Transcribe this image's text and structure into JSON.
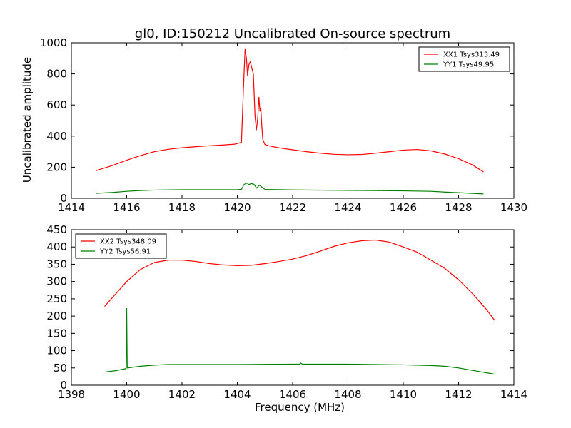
{
  "title": "gl0, ID:150212 Uncalibrated On-source spectrum",
  "chart_data": [
    {
      "type": "line",
      "ylabel": "Uncalibrated amplitude",
      "xlabel": "",
      "xlim": [
        1414,
        1430
      ],
      "ylim": [
        0,
        1000
      ],
      "xticks": [
        "1414",
        "1416",
        "1418",
        "1420",
        "1422",
        "1424",
        "1426",
        "1428",
        "1430"
      ],
      "yticks": [
        "0",
        "200",
        "400",
        "600",
        "800",
        "1000"
      ],
      "legend_position": "top-right",
      "series": [
        {
          "name": "XX1 Tsys313.49",
          "color": "#ff0000",
          "points": [
            [
              1414.9,
              178
            ],
            [
              1415.2,
              195
            ],
            [
              1415.5,
              212
            ],
            [
              1416.0,
              245
            ],
            [
              1416.5,
              275
            ],
            [
              1417.0,
              300
            ],
            [
              1417.5,
              315
            ],
            [
              1418.0,
              325
            ],
            [
              1418.5,
              332
            ],
            [
              1419.0,
              338
            ],
            [
              1419.5,
              343
            ],
            [
              1419.9,
              348
            ],
            [
              1420.15,
              360
            ],
            [
              1420.22,
              700
            ],
            [
              1420.28,
              960
            ],
            [
              1420.33,
              900
            ],
            [
              1420.37,
              790
            ],
            [
              1420.42,
              860
            ],
            [
              1420.47,
              880
            ],
            [
              1420.52,
              840
            ],
            [
              1420.58,
              800
            ],
            [
              1420.64,
              530
            ],
            [
              1420.69,
              440
            ],
            [
              1420.74,
              520
            ],
            [
              1420.78,
              650
            ],
            [
              1420.82,
              560
            ],
            [
              1420.85,
              580
            ],
            [
              1420.88,
              480
            ],
            [
              1420.92,
              380
            ],
            [
              1421.0,
              345
            ],
            [
              1421.2,
              335
            ],
            [
              1421.6,
              322
            ],
            [
              1422.0,
              312
            ],
            [
              1422.5,
              300
            ],
            [
              1423.0,
              290
            ],
            [
              1423.5,
              283
            ],
            [
              1424.0,
              280
            ],
            [
              1424.5,
              282
            ],
            [
              1425.0,
              290
            ],
            [
              1425.5,
              300
            ],
            [
              1426.0,
              310
            ],
            [
              1426.5,
              314
            ],
            [
              1427.0,
              305
            ],
            [
              1427.5,
              285
            ],
            [
              1428.0,
              255
            ],
            [
              1428.5,
              215
            ],
            [
              1428.9,
              170
            ]
          ]
        },
        {
          "name": "YY1 Tsys49.95",
          "color": "#008000",
          "points": [
            [
              1414.9,
              32
            ],
            [
              1415.5,
              38
            ],
            [
              1416.0,
              45
            ],
            [
              1416.5,
              50
            ],
            [
              1417.0,
              53
            ],
            [
              1418.0,
              55
            ],
            [
              1419.0,
              55
            ],
            [
              1420.0,
              55
            ],
            [
              1420.15,
              58
            ],
            [
              1420.25,
              90
            ],
            [
              1420.35,
              98
            ],
            [
              1420.42,
              88
            ],
            [
              1420.5,
              95
            ],
            [
              1420.6,
              90
            ],
            [
              1420.7,
              65
            ],
            [
              1420.8,
              85
            ],
            [
              1420.9,
              70
            ],
            [
              1421.0,
              57
            ],
            [
              1422.0,
              54
            ],
            [
              1424.0,
              51
            ],
            [
              1426.0,
              48
            ],
            [
              1427.0,
              45
            ],
            [
              1427.5,
              40
            ],
            [
              1428.0,
              36
            ],
            [
              1428.9,
              28
            ]
          ]
        }
      ]
    },
    {
      "type": "line",
      "ylabel": "",
      "xlabel": "Frequency (MHz)",
      "xlim": [
        1398,
        1414
      ],
      "ylim": [
        0,
        450
      ],
      "xticks": [
        "1398",
        "1400",
        "1402",
        "1404",
        "1406",
        "1408",
        "1410",
        "1412",
        "1414"
      ],
      "yticks": [
        "0",
        "50",
        "100",
        "150",
        "200",
        "250",
        "300",
        "350",
        "400",
        "450"
      ],
      "legend_position": "top-left",
      "series": [
        {
          "name": "XX2 Tsys348.09",
          "color": "#ff0000",
          "points": [
            [
              1399.2,
              228
            ],
            [
              1399.5,
              255
            ],
            [
              1400.0,
              300
            ],
            [
              1400.5,
              335
            ],
            [
              1401.0,
              355
            ],
            [
              1401.5,
              362
            ],
            [
              1402.0,
              362
            ],
            [
              1402.5,
              358
            ],
            [
              1403.0,
              352
            ],
            [
              1403.5,
              348
            ],
            [
              1404.0,
              346
            ],
            [
              1404.5,
              347
            ],
            [
              1405.0,
              352
            ],
            [
              1405.5,
              358
            ],
            [
              1406.0,
              365
            ],
            [
              1406.5,
              375
            ],
            [
              1407.0,
              388
            ],
            [
              1407.5,
              402
            ],
            [
              1408.0,
              412
            ],
            [
              1408.5,
              418
            ],
            [
              1409.0,
              420
            ],
            [
              1409.5,
              414
            ],
            [
              1410.0,
              400
            ],
            [
              1410.5,
              385
            ],
            [
              1411.0,
              362
            ],
            [
              1411.5,
              338
            ],
            [
              1412.0,
              305
            ],
            [
              1412.5,
              265
            ],
            [
              1413.0,
              220
            ],
            [
              1413.3,
              188
            ]
          ]
        },
        {
          "name": "YY2 Tsys56.91",
          "color": "#008000",
          "points": [
            [
              1399.2,
              38
            ],
            [
              1399.6,
              42
            ],
            [
              1399.98,
              48
            ],
            [
              1400.0,
              222
            ],
            [
              1400.02,
              50
            ],
            [
              1400.5,
              55
            ],
            [
              1401.0,
              58
            ],
            [
              1401.5,
              60
            ],
            [
              1402.0,
              60
            ],
            [
              1404.0,
              60
            ],
            [
              1406.0,
              61
            ],
            [
              1406.25,
              61
            ],
            [
              1406.3,
              64
            ],
            [
              1406.35,
              61
            ],
            [
              1408.0,
              61
            ],
            [
              1410.0,
              59
            ],
            [
              1411.0,
              57
            ],
            [
              1411.5,
              55
            ],
            [
              1412.0,
              50
            ],
            [
              1412.5,
              43
            ],
            [
              1413.3,
              32
            ]
          ]
        }
      ]
    }
  ]
}
